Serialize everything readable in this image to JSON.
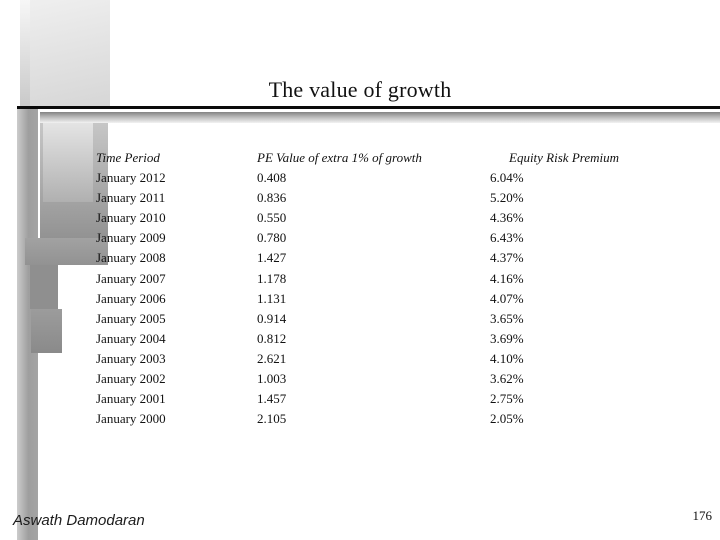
{
  "slide": {
    "title": "The value of growth",
    "footer": {
      "author": "Aswath Damodaran",
      "page_number": "176"
    }
  },
  "table": {
    "columns": [
      "Time Period",
      "PE Value of extra 1% of growth",
      "Equity Risk Premium"
    ],
    "rows": [
      [
        "January 2012",
        "0.408",
        "6.04%"
      ],
      [
        "January 2011",
        "0.836",
        "5.20%"
      ],
      [
        "January 2010",
        "0.550",
        "4.36%"
      ],
      [
        "January 2009",
        "0.780",
        "6.43%"
      ],
      [
        "January 2008",
        "1.427",
        "4.37%"
      ],
      [
        "January 2007",
        "1.178",
        "4.16%"
      ],
      [
        "January 2006",
        "1.131",
        "4.07%"
      ],
      [
        "January 2005",
        "0.914",
        "3.65%"
      ],
      [
        "January 2004",
        "0.812",
        "3.69%"
      ],
      [
        "January 2003",
        "2.621",
        "4.10%"
      ],
      [
        "January 2002",
        "1.003",
        "3.62%"
      ],
      [
        "January 2001",
        "1.457",
        "2.75%"
      ],
      [
        "January 2000",
        "2.105",
        "2.05%"
      ]
    ]
  },
  "colors": {
    "background": "#ffffff",
    "text": "#111111",
    "title_rule": "#0a0a0a",
    "decor_gray_light": "#e8e8e8",
    "decor_gray_dark": "#8e8e8e"
  }
}
